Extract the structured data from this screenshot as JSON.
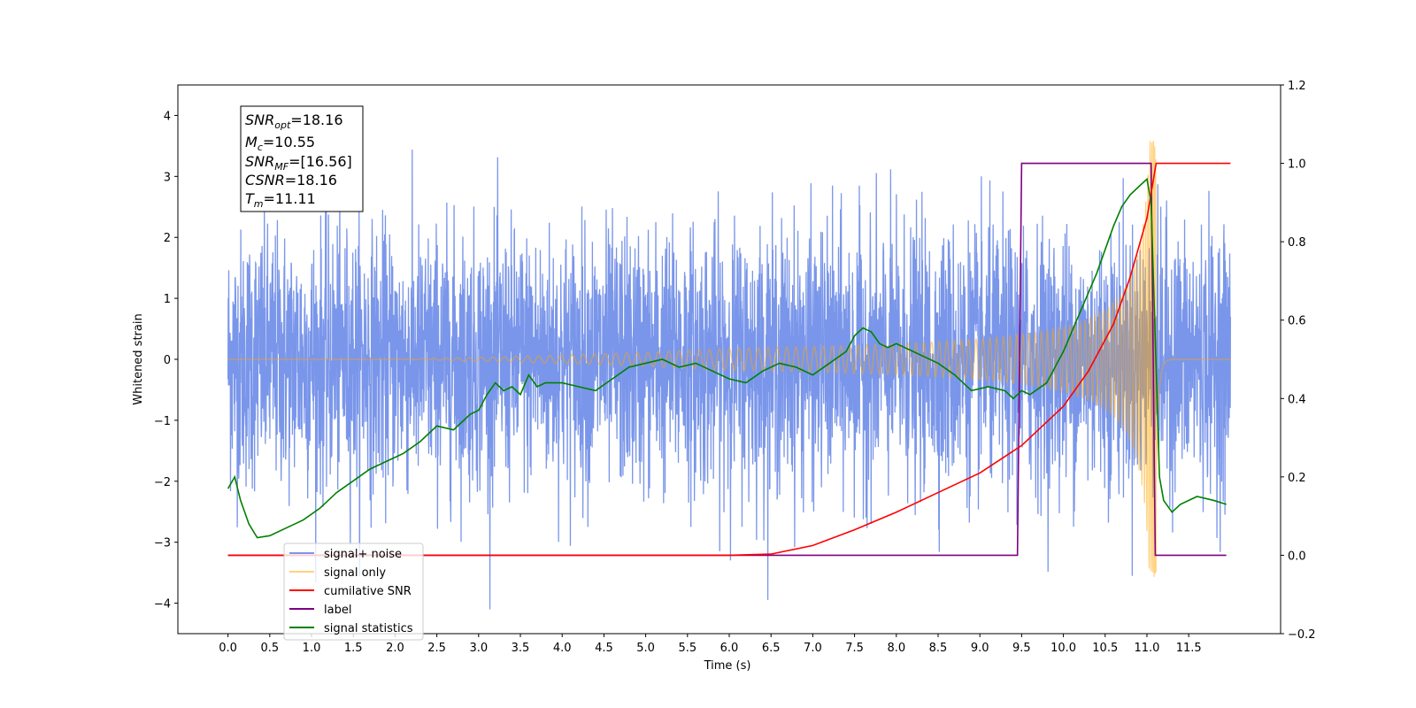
{
  "chart_data": {
    "type": "line",
    "xlabel": "Time (s)",
    "ylabel": "Whitened strain",
    "xlim": [
      -0.6,
      12.6
    ],
    "ylim": [
      -4.5,
      4.5
    ],
    "y2lim": [
      -0.2,
      1.2
    ],
    "xticks": [
      "0.0",
      "0.5",
      "1.0",
      "1.5",
      "2.0",
      "2.5",
      "3.0",
      "3.5",
      "4.0",
      "4.5",
      "5.0",
      "5.5",
      "6.0",
      "6.5",
      "7.0",
      "7.5",
      "8.0",
      "8.5",
      "9.0",
      "9.5",
      "10.0",
      "10.5",
      "11.0",
      "11.5"
    ],
    "yticks": [
      "4",
      "3",
      "2",
      "1",
      "0",
      "−1",
      "−2",
      "−3",
      "−4"
    ],
    "y2ticks": [
      "1.2",
      "1.0",
      "0.8",
      "0.6",
      "0.4",
      "0.2",
      "0.0",
      "−0.2"
    ],
    "grid": false,
    "legend_placement": "lower-left",
    "annotation": {
      "snr_opt": {
        "sym": "SNR",
        "sub": "opt",
        "val": "=18.16"
      },
      "mc": {
        "sym": "M",
        "sub": "c",
        "val": "=10.55"
      },
      "snr_mf": {
        "sym": "SNR",
        "sub": "MF",
        "val": "=[16.56]"
      },
      "csnr": {
        "sym": "CSNR",
        "sub": "",
        "val": "=18.16"
      },
      "tm": {
        "sym": "T",
        "sub": "m",
        "val": "=11.11"
      }
    },
    "series": [
      {
        "name": "signal+ noise",
        "color": "#4169e1",
        "axis": "left",
        "x_range": [
          0.0,
          12.0
        ],
        "noise_sigma": 1.0,
        "min_max": [
          -4.1,
          4.05
        ]
      },
      {
        "name": "signal only",
        "color": "#ffa500",
        "axis": "left",
        "chirp": {
          "start": 0.0,
          "merger": 11.11,
          "end": 12.0,
          "peak_amplitude": 3.6
        }
      },
      {
        "name": "cumilative SNR",
        "color": "#ff0000",
        "axis": "right",
        "x": [
          0.0,
          6.0,
          6.5,
          7.0,
          7.5,
          8.0,
          8.5,
          9.0,
          9.5,
          10.0,
          10.3,
          10.6,
          10.8,
          11.0,
          11.11,
          11.2,
          12.0
        ],
        "y": [
          0.0,
          0.0,
          0.003,
          0.025,
          0.065,
          0.11,
          0.16,
          0.21,
          0.28,
          0.38,
          0.47,
          0.59,
          0.71,
          0.86,
          1.0,
          1.0,
          1.0
        ]
      },
      {
        "name": "label",
        "color": "#800080",
        "axis": "right",
        "x": [
          0.0,
          9.45,
          9.5,
          11.05,
          11.1,
          11.95
        ],
        "y": [
          0.0,
          0.0,
          1.0,
          1.0,
          0.0,
          0.0
        ]
      },
      {
        "name": "signal statistics",
        "color": "#008000",
        "axis": "right",
        "x": [
          0.0,
          0.08,
          0.15,
          0.25,
          0.35,
          0.5,
          0.7,
          0.9,
          1.1,
          1.3,
          1.5,
          1.7,
          1.9,
          2.1,
          2.3,
          2.5,
          2.7,
          2.9,
          3.0,
          3.1,
          3.2,
          3.3,
          3.4,
          3.5,
          3.6,
          3.7,
          3.8,
          4.0,
          4.2,
          4.4,
          4.6,
          4.8,
          5.0,
          5.2,
          5.4,
          5.6,
          5.8,
          6.0,
          6.2,
          6.4,
          6.6,
          6.8,
          7.0,
          7.2,
          7.4,
          7.5,
          7.6,
          7.7,
          7.8,
          7.9,
          8.0,
          8.1,
          8.2,
          8.3,
          8.5,
          8.7,
          8.9,
          9.1,
          9.3,
          9.4,
          9.5,
          9.6,
          9.8,
          10.0,
          10.2,
          10.4,
          10.6,
          10.7,
          10.8,
          10.9,
          11.0,
          11.05,
          11.1,
          11.15,
          11.2,
          11.3,
          11.4,
          11.6,
          11.8,
          11.95
        ],
        "y": [
          0.17,
          0.2,
          0.14,
          0.08,
          0.045,
          0.05,
          0.07,
          0.09,
          0.12,
          0.16,
          0.19,
          0.22,
          0.24,
          0.26,
          0.29,
          0.33,
          0.32,
          0.36,
          0.37,
          0.41,
          0.44,
          0.42,
          0.43,
          0.41,
          0.46,
          0.43,
          0.44,
          0.44,
          0.43,
          0.42,
          0.45,
          0.48,
          0.49,
          0.5,
          0.48,
          0.49,
          0.47,
          0.45,
          0.44,
          0.47,
          0.49,
          0.48,
          0.46,
          0.49,
          0.52,
          0.56,
          0.58,
          0.57,
          0.54,
          0.53,
          0.54,
          0.53,
          0.52,
          0.51,
          0.49,
          0.46,
          0.42,
          0.43,
          0.42,
          0.4,
          0.42,
          0.41,
          0.44,
          0.52,
          0.62,
          0.72,
          0.84,
          0.89,
          0.92,
          0.94,
          0.96,
          0.9,
          0.55,
          0.2,
          0.14,
          0.11,
          0.13,
          0.15,
          0.14,
          0.13
        ]
      }
    ]
  }
}
